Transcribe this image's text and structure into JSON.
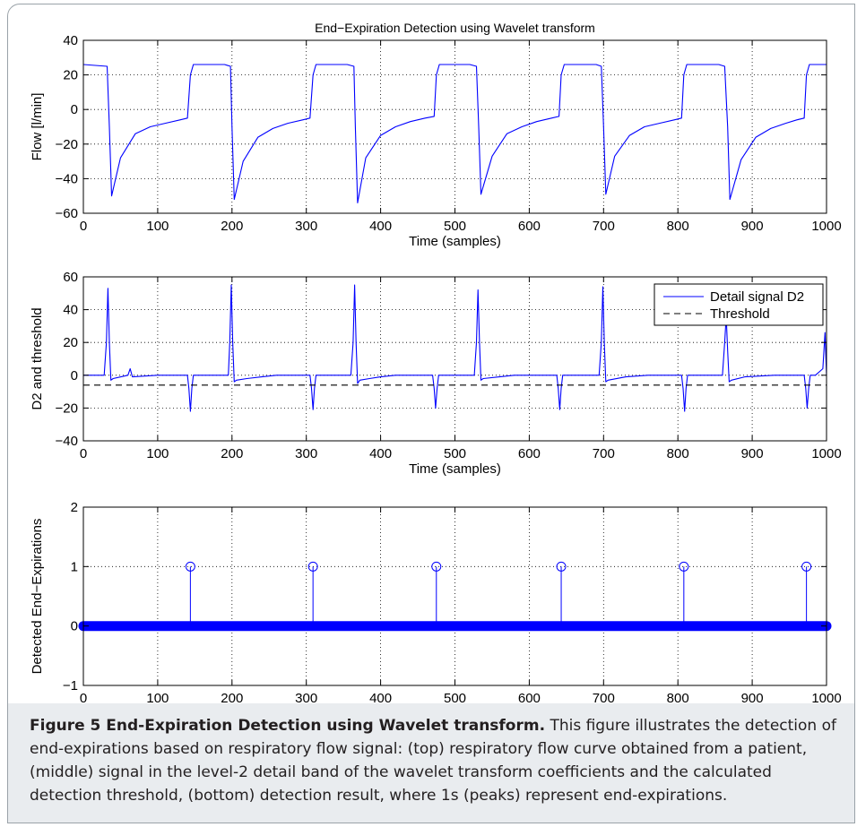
{
  "caption": {
    "label": "Figure 5 End-Expiration Detection using Wavelet transform.",
    "text": " This figure illustrates the detection of end-expirations based on respiratory flow signal: (top) respiratory flow curve obtained from a patient, (middle) signal in the level-2 detail band of the wavelet transform coefficients and the calculated detection threshold, (bottom) detection result, where 1s (peaks) represent end-expirations."
  },
  "chart_data": [
    {
      "type": "line",
      "title": "End−Expiration Detection using Wavelet transform",
      "xlabel": "Time (samples)",
      "ylabel": "Flow [l/min]",
      "xlim": [
        0,
        1000
      ],
      "ylim": [
        -60,
        40
      ],
      "xticks": [
        0,
        100,
        200,
        300,
        400,
        500,
        600,
        700,
        800,
        900,
        1000
      ],
      "yticks": [
        -60,
        -40,
        -20,
        0,
        20,
        40
      ],
      "ytick_labels": [
        "−60",
        "−40",
        "−20",
        "0",
        "20",
        "40"
      ],
      "grid": true,
      "series": [
        {
          "color": "#0000ff",
          "x": [
            0,
            32,
            35,
            38,
            50,
            70,
            90,
            110,
            130,
            140,
            144,
            148,
            160,
            175,
            190,
            198,
            200,
            203,
            215,
            235,
            255,
            275,
            295,
            305,
            309,
            313,
            325,
            340,
            355,
            364,
            366,
            369,
            380,
            400,
            420,
            440,
            460,
            472,
            475,
            479,
            490,
            505,
            520,
            529,
            532,
            535,
            550,
            570,
            590,
            610,
            630,
            640,
            643,
            647,
            660,
            675,
            690,
            697,
            700,
            703,
            715,
            735,
            755,
            775,
            795,
            805,
            808,
            812,
            825,
            840,
            855,
            863,
            867,
            870,
            885,
            905,
            925,
            945,
            960,
            970,
            973,
            977,
            985,
            995,
            1000
          ],
          "y": [
            26,
            25,
            -10,
            -50,
            -28,
            -14,
            -10,
            -8,
            -6,
            -5,
            20,
            26,
            26,
            26,
            26,
            25,
            -10,
            -52,
            -30,
            -16,
            -11,
            -8,
            -6,
            -5,
            20,
            26,
            26,
            26,
            26,
            25,
            -10,
            -54,
            -28,
            -15,
            -10,
            -7,
            -5,
            -4,
            20,
            26,
            26,
            26,
            26,
            25,
            -10,
            -49,
            -27,
            -14,
            -10,
            -7,
            -5,
            -4,
            20,
            26,
            26,
            26,
            26,
            25,
            -10,
            -49,
            -27,
            -15,
            -10,
            -8,
            -6,
            -5,
            20,
            26,
            26,
            26,
            26,
            25,
            -10,
            -52,
            -29,
            -16,
            -11,
            -8,
            -6,
            -5,
            20,
            26,
            26,
            26,
            26
          ]
        }
      ]
    },
    {
      "type": "line",
      "xlabel": "Time (samples)",
      "ylabel": "D2 and threshold",
      "xlim": [
        0,
        1000
      ],
      "ylim": [
        -40,
        60
      ],
      "xticks": [
        0,
        100,
        200,
        300,
        400,
        500,
        600,
        700,
        800,
        900,
        1000
      ],
      "yticks": [
        -40,
        -20,
        0,
        20,
        40,
        60
      ],
      "ytick_labels": [
        "−40",
        "−20",
        "0",
        "20",
        "40",
        "60"
      ],
      "grid": true,
      "legend": {
        "position": "top-right"
      },
      "series": [
        {
          "name": "Detail signal D2",
          "color": "#0000ff",
          "x": [
            0,
            28,
            31,
            33,
            35,
            37,
            40,
            60,
            63,
            66,
            100,
            140,
            142,
            144,
            146,
            148,
            160,
            195,
            197,
            199,
            201,
            203,
            206,
            220,
            240,
            260,
            280,
            305,
            307,
            309,
            311,
            313,
            325,
            360,
            363,
            365,
            367,
            369,
            372,
            385,
            400,
            420,
            440,
            470,
            472,
            474,
            476,
            478,
            490,
            526,
            529,
            531,
            533,
            535,
            538,
            560,
            580,
            600,
            637,
            639,
            641,
            643,
            645,
            660,
            694,
            697,
            699,
            701,
            703,
            706,
            730,
            760,
            805,
            807,
            809,
            811,
            813,
            825,
            860,
            863,
            865,
            867,
            869,
            872,
            890,
            930,
            970,
            972,
            974,
            976,
            978,
            985,
            995,
            998,
            1000
          ],
          "y": [
            0,
            0,
            20,
            53,
            20,
            -3,
            -2,
            0,
            4,
            -1,
            0,
            0,
            -8,
            -22,
            -8,
            0,
            0,
            0,
            20,
            55,
            20,
            -4,
            -3,
            -2,
            -1,
            0,
            0,
            0,
            -8,
            -21,
            -8,
            0,
            0,
            0,
            20,
            55,
            20,
            -5,
            -3,
            -2,
            -1,
            0,
            0,
            0,
            -8,
            -20,
            -8,
            0,
            0,
            0,
            20,
            52,
            20,
            -3,
            -2,
            -1,
            0,
            0,
            0,
            -8,
            -21,
            -8,
            0,
            0,
            0,
            20,
            54,
            20,
            -4,
            -3,
            -1,
            0,
            0,
            -8,
            -22,
            -8,
            0,
            0,
            0,
            20,
            36,
            15,
            -4,
            -3,
            -1,
            0,
            0,
            -8,
            -20,
            -8,
            0,
            0,
            4,
            26,
            0
          ]
        },
        {
          "name": "Threshold",
          "color": "#000000",
          "dashed": true,
          "x": [
            0,
            1000
          ],
          "y": [
            -6,
            -6
          ]
        }
      ]
    },
    {
      "type": "stem",
      "xlabel": "Time (samples)",
      "ylabel": "Detected End−Expirations",
      "xlim": [
        0,
        1000
      ],
      "ylim": [
        -1,
        2
      ],
      "xticks": [
        0,
        100,
        200,
        300,
        400,
        500,
        600,
        700,
        800,
        900,
        1000
      ],
      "yticks": [
        -1,
        0,
        1,
        2
      ],
      "ytick_labels": [
        "−1",
        "0",
        "1",
        "2"
      ],
      "grid": true,
      "series": [
        {
          "color": "#0000ff",
          "x": [
            144,
            309,
            475,
            643,
            808,
            973
          ],
          "y": [
            1,
            1,
            1,
            1,
            1,
            1
          ]
        }
      ]
    }
  ]
}
